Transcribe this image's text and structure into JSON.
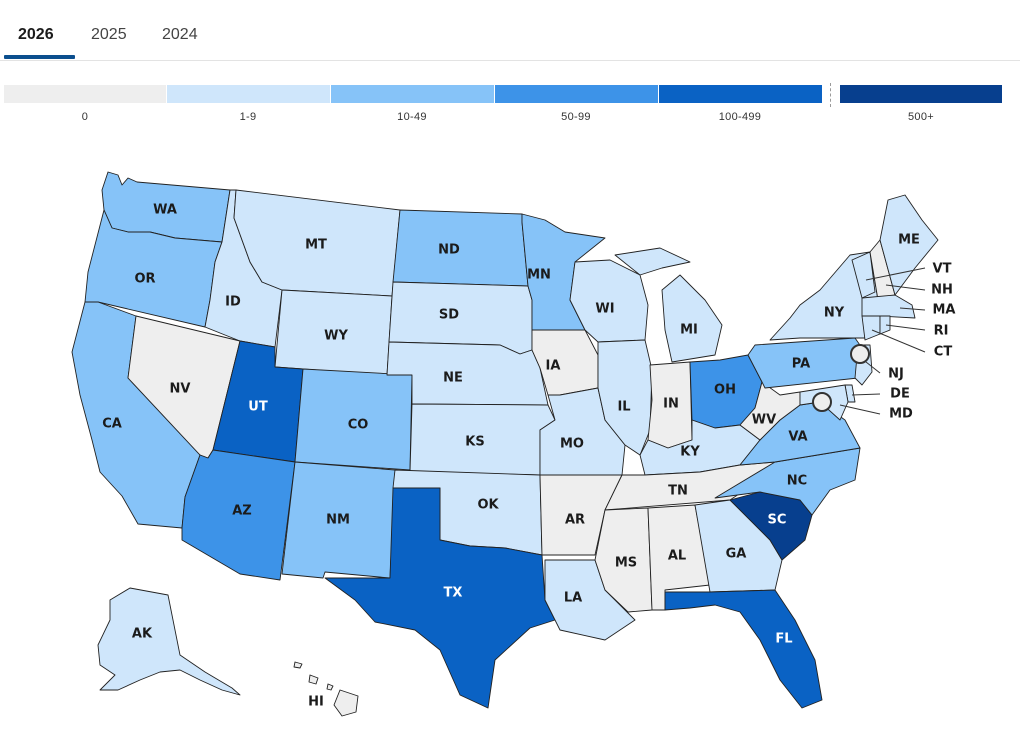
{
  "tabs": [
    {
      "label": "2026",
      "active": true
    },
    {
      "label": "2025",
      "active": false
    },
    {
      "label": "2024",
      "active": false
    }
  ],
  "legend": [
    {
      "label": "0",
      "color": "#eeeeee"
    },
    {
      "label": "1-9",
      "color": "#cfe6fb"
    },
    {
      "label": "10-49",
      "color": "#86c3f8"
    },
    {
      "label": "50-99",
      "color": "#3d93e8"
    },
    {
      "label": "100-499",
      "color": "#0a62c4"
    },
    {
      "label": "500+",
      "color": "#073f8e"
    }
  ],
  "states": {
    "WA": "WA",
    "OR": "OR",
    "CA": "CA",
    "ID": "ID",
    "NV": "NV",
    "MT": "MT",
    "WY": "WY",
    "UT": "UT",
    "AZ": "AZ",
    "CO": "CO",
    "NM": "NM",
    "ND": "ND",
    "SD": "SD",
    "NE": "NE",
    "KS": "KS",
    "OK": "OK",
    "TX": "TX",
    "MN": "MN",
    "IA": "IA",
    "MO": "MO",
    "AR": "AR",
    "LA": "LA",
    "WI": "WI",
    "IL": "IL",
    "MI": "MI",
    "IN": "IN",
    "OH": "OH",
    "KY": "KY",
    "TN": "TN",
    "MS": "MS",
    "AL": "AL",
    "GA": "GA",
    "FL": "FL",
    "SC": "SC",
    "NC": "NC",
    "VA": "VA",
    "WV": "WV",
    "PA": "PA",
    "NY": "NY",
    "ME": "ME",
    "VT": "VT",
    "NH": "NH",
    "MA": "MA",
    "RI": "RI",
    "CT": "CT",
    "NJ": "NJ",
    "DE": "DE",
    "MD": "MD",
    "AK": "AK",
    "HI": "HI"
  }
}
